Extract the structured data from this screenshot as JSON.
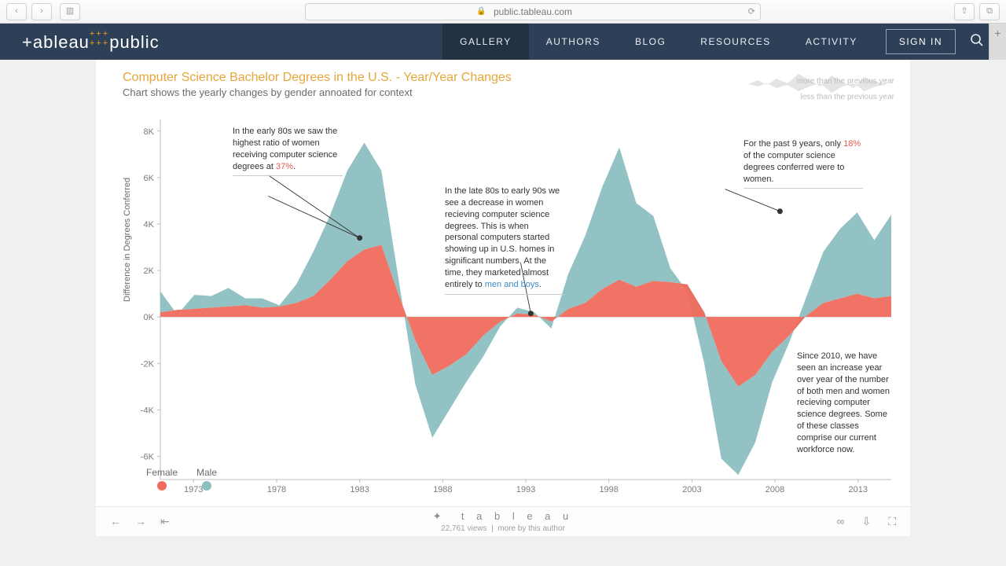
{
  "browser": {
    "url": "public.tableau.com"
  },
  "header": {
    "logo_left": "+ableau",
    "logo_right": "public",
    "nav": [
      "GALLERY",
      "AUTHORS",
      "BLOG",
      "RESOURCES",
      "ACTIVITY"
    ],
    "active_index": 0,
    "signin": "SIGN IN"
  },
  "viz": {
    "title": "Computer Science Bachelor Degrees in the U.S. - Year/Year Changes",
    "subtitle": "Chart shows the yearly changes by gender annoated for context",
    "spark_top": "more than the previous year",
    "spark_bottom": "less than the previous year",
    "y_axis_label": "Difference in Degrees Conferred",
    "legend": [
      {
        "label": "Female",
        "color": "#f06b5d"
      },
      {
        "label": "Male",
        "color": "#8cbfc0"
      }
    ],
    "annotations": {
      "a1": {
        "text_parts": [
          "In the early 80s we saw the highest ratio of women receiving computer science degrees at ",
          "37%",
          "."
        ],
        "hl_class": "hl-orange"
      },
      "a2": {
        "text_parts": [
          "In the late 80s to early 90s we see a decrease in women recieving computer science degrees. This is when personal computers started showing up in U.S. homes in significant numbers. At the time, they marketed almost entirely to ",
          "men and boys",
          "."
        ],
        "hl_class": "hl-blue"
      },
      "a3": {
        "text_parts": [
          "For the past 9 years, only ",
          "18%",
          " of the computer science degrees conferred were to women."
        ],
        "hl_class": "hl-orange"
      },
      "a4": {
        "text": "Since 2010, we have seen an increase year over year of the number of both men and women recieving computer science degrees. Some of these classes comprise our current workforce now."
      }
    }
  },
  "chart": {
    "type": "stacked-area",
    "x_start": 1971,
    "x_end": 2015,
    "x_ticks": [
      1973,
      1978,
      1983,
      1988,
      1993,
      1998,
      2003,
      2008,
      2013
    ],
    "y_ticks": [
      -6,
      -4,
      -2,
      0,
      2,
      4,
      6,
      8
    ],
    "y_tick_labels": [
      "-6K",
      "-4K",
      "-2K",
      "0K",
      "2K",
      "4K",
      "6K",
      "8K"
    ],
    "y_min": -7,
    "y_max": 8.5,
    "axis_color": "#bfbfbf",
    "zero_line_color": "#e0e0e0",
    "series": {
      "female": {
        "color": "#f06b5d",
        "values": [
          0.2,
          0.3,
          0.35,
          0.4,
          0.45,
          0.5,
          0.4,
          0.45,
          0.6,
          0.9,
          1.6,
          2.4,
          2.9,
          3.1,
          1.0,
          -1.0,
          -2.5,
          -2.1,
          -1.6,
          -0.8,
          -0.2,
          0.15,
          0.1,
          -0.2,
          0.35,
          0.6,
          1.2,
          1.6,
          1.3,
          1.55,
          1.5,
          1.4,
          0.2,
          -1.9,
          -3.0,
          -2.5,
          -1.5,
          -0.8,
          0.05,
          0.6,
          0.8,
          1.0,
          0.8,
          0.9
        ]
      },
      "male": {
        "color": "#8cbfc0",
        "values": [
          0.9,
          -0.2,
          0.6,
          0.5,
          0.8,
          0.3,
          0.4,
          0.05,
          0.8,
          1.9,
          2.8,
          3.9,
          4.6,
          3.2,
          0.7,
          -1.9,
          -2.7,
          -1.9,
          -1.2,
          -0.9,
          -0.2,
          0.25,
          0.1,
          -0.3,
          1.5,
          2.9,
          4.4,
          5.7,
          3.6,
          2.8,
          0.6,
          -0.3,
          -2.2,
          -4.2,
          -3.8,
          -2.9,
          -1.3,
          -0.3,
          0.8,
          2.2,
          3.0,
          3.5,
          2.5,
          3.5
        ]
      }
    },
    "callout_points": [
      {
        "year": 1983,
        "y": 3.4
      },
      {
        "year": 1993.3,
        "y": 0.15
      },
      {
        "year": 2008.3,
        "y": 4.55
      }
    ],
    "callout_lines": [
      {
        "from": [
          1977.5,
          6.1
        ],
        "to": [
          1983,
          3.4
        ]
      },
      {
        "from": [
          1977.5,
          5.2
        ],
        "to": [
          1983,
          3.4
        ]
      },
      {
        "from": [
          1992.7,
          2.3
        ],
        "to": [
          1993.3,
          0.15
        ]
      },
      {
        "from": [
          2005.0,
          5.5
        ],
        "to": [
          2008.3,
          4.55
        ]
      }
    ]
  },
  "toolbar": {
    "brand_glyph": "✦",
    "brand": "t a b l e a u",
    "views": "22,761 views",
    "more": "more by this author"
  }
}
